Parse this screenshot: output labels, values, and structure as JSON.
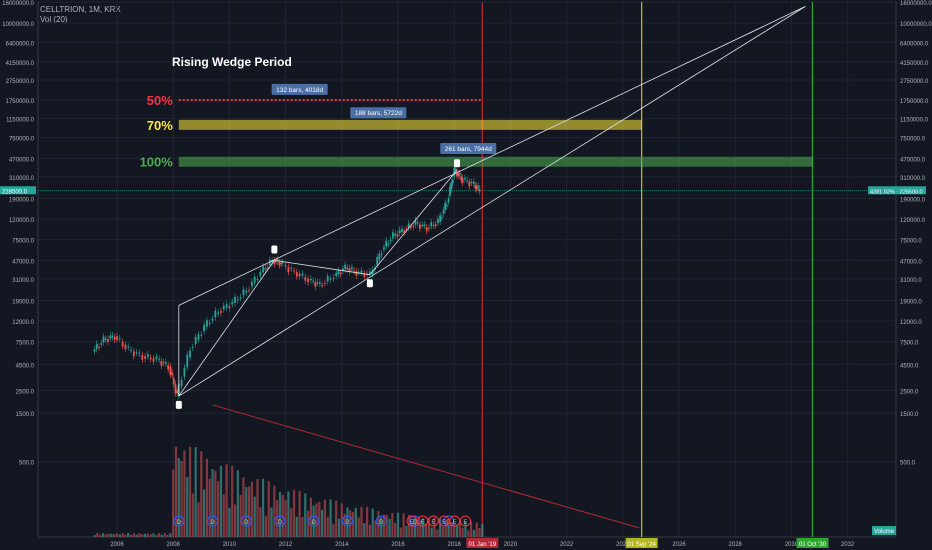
{
  "header": {
    "symbol_line": "CELLTRION, 1M, KRX",
    "volume_line": "Vol (20)"
  },
  "chart_data": {
    "type": "candlestick",
    "title": "Rising Wedge Period",
    "y_scale": "log",
    "ylim": [
      1200,
      16000000
    ],
    "y_ticks": [
      "16000000.0",
      "10000000.0",
      "6400000.0",
      "4150000.0",
      "2750000.0",
      "1750000.0",
      "1150000.0",
      "750000.0",
      "470000.0",
      "310000.0",
      "190000.0",
      "120000.0",
      "75000.0",
      "47000.0",
      "31000.0",
      "19000.0",
      "12000.0",
      "7500.0",
      "4500.0",
      "2500.0",
      "1500.0",
      "500.0"
    ],
    "x_ticks": [
      "2006",
      "2008",
      "2010",
      "2012",
      "2014",
      "2016",
      "2018",
      "2020",
      "2022",
      "2024",
      "2026",
      "2028",
      "2030",
      "2032"
    ],
    "current_price_label": "228500.0",
    "current_change_label": "4281.02% · 228500.0",
    "levels": [
      {
        "label": "50%",
        "price": 1750000,
        "color": "#f23645"
      },
      {
        "label": "70%",
        "price": 1000000,
        "color": "#ffeb3b"
      },
      {
        "label": "100%",
        "price": 435000,
        "color": "#4caf50"
      }
    ],
    "range_labels": [
      "132 bars, 4018d",
      "188 bars, 5722d",
      "261 bars, 7944d"
    ],
    "vertical_markers": [
      {
        "label": "01 Jan '19",
        "date": 2019.0,
        "color": "#b22833"
      },
      {
        "label": "01 Sep '24",
        "date": 2024.67,
        "color": "#b5b520"
      },
      {
        "label": "01 Oct '30",
        "date": 2030.75,
        "color": "#2fa52f"
      }
    ],
    "event_badges": [
      "D",
      "D",
      "D",
      "D",
      "D",
      "D",
      "D",
      "D",
      "D",
      "E",
      "E",
      "E",
      "E",
      "E",
      "E"
    ],
    "volume_label": "Volume",
    "series": [
      {
        "name": "price",
        "points": [
          [
            2005.2,
            6000
          ],
          [
            2005.6,
            7800
          ],
          [
            2006.0,
            8500
          ],
          [
            2006.5,
            6200
          ],
          [
            2007.0,
            5400
          ],
          [
            2007.5,
            5000
          ],
          [
            2007.9,
            4300
          ],
          [
            2008.2,
            2200
          ],
          [
            2008.7,
            6500
          ],
          [
            2009.2,
            10500
          ],
          [
            2009.7,
            15000
          ],
          [
            2010.2,
            18000
          ],
          [
            2010.7,
            24000
          ],
          [
            2011.2,
            36000
          ],
          [
            2011.6,
            47000
          ],
          [
            2011.9,
            44000
          ],
          [
            2012.4,
            36000
          ],
          [
            2012.9,
            30000
          ],
          [
            2013.3,
            27000
          ],
          [
            2013.8,
            33000
          ],
          [
            2014.2,
            40000
          ],
          [
            2014.6,
            36000
          ],
          [
            2015.1,
            34000
          ],
          [
            2015.5,
            60000
          ],
          [
            2015.9,
            82000
          ],
          [
            2016.3,
            95000
          ],
          [
            2016.7,
            108000
          ],
          [
            2017.1,
            98000
          ],
          [
            2017.5,
            112000
          ],
          [
            2017.8,
            175000
          ],
          [
            2018.05,
            360000
          ],
          [
            2018.3,
            300000
          ],
          [
            2018.7,
            265000
          ],
          [
            2018.95,
            228500
          ]
        ]
      }
    ]
  }
}
